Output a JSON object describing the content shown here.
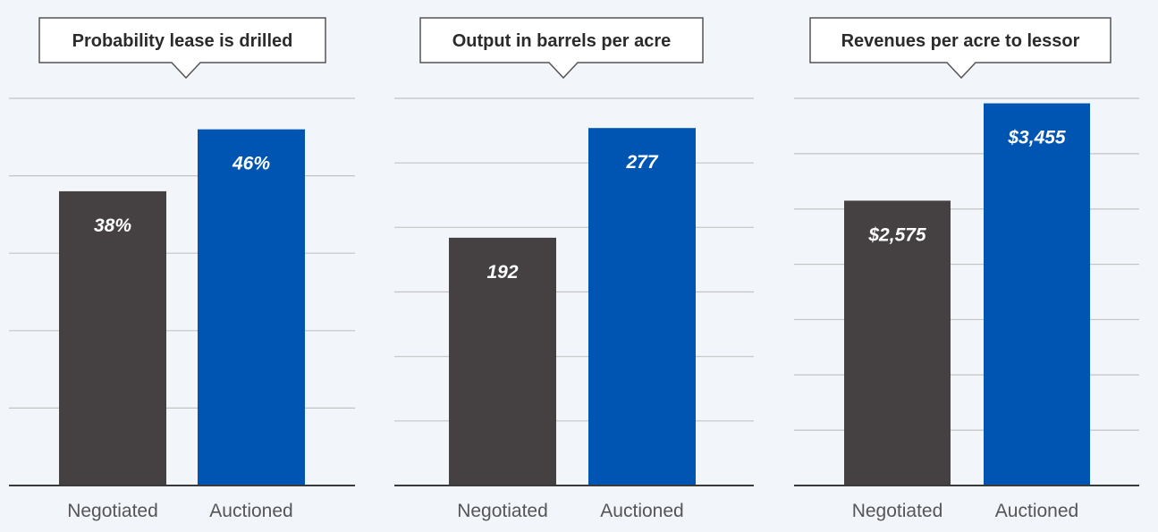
{
  "colors": {
    "background": "#f2f5fa",
    "negotiated": "#454142",
    "auctioned": "#0055b3",
    "gridline": "#c4c4c4",
    "axis": "#3a3a3a",
    "callout_border": "#555555",
    "callout_fill": "#ffffff"
  },
  "chart_data": [
    {
      "type": "bar",
      "title": "Probability lease is drilled",
      "categories": [
        "Negotiated",
        "Auctioned"
      ],
      "values": [
        38,
        46
      ],
      "value_labels": [
        "38%",
        "46%"
      ],
      "ylim": [
        0,
        50
      ],
      "gridlines": [
        0,
        10,
        20,
        30,
        40,
        50
      ],
      "grid": true,
      "legend": "none"
    },
    {
      "type": "bar",
      "title": "Output in barrels per acre",
      "categories": [
        "Negotiated",
        "Auctioned"
      ],
      "values": [
        192,
        277
      ],
      "value_labels": [
        "192",
        "277"
      ],
      "ylim": [
        0,
        300
      ],
      "gridlines": [
        0,
        50,
        100,
        150,
        200,
        250,
        300
      ],
      "grid": true,
      "legend": "none"
    },
    {
      "type": "bar",
      "title": "Revenues per acre to lessor",
      "categories": [
        "Negotiated",
        "Auctioned"
      ],
      "values": [
        2575,
        3455
      ],
      "value_labels": [
        "$2,575",
        "$3,455"
      ],
      "ylim": [
        0,
        3500
      ],
      "gridlines": [
        0,
        500,
        1000,
        1500,
        2000,
        2500,
        3000,
        3500
      ],
      "grid": true,
      "legend": "none"
    }
  ]
}
